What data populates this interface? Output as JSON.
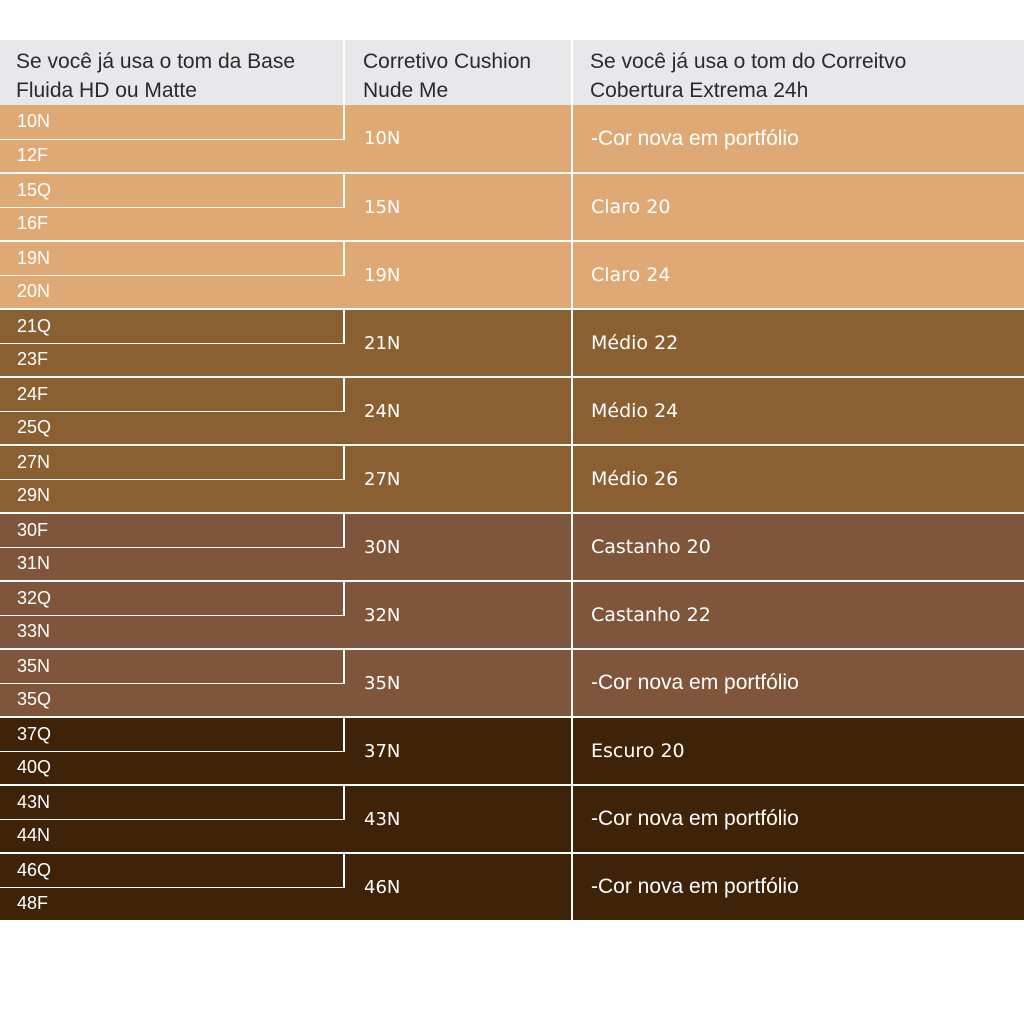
{
  "headers": {
    "base_line1": "Se você já usa o tom da Base",
    "base_line2": "Fluida HD ou Matte",
    "cushion_line1": "Corretivo Cushion",
    "cushion_line2": "Nude Me",
    "extrema_line1": "Se você já usa o tom do Correitvo",
    "extrema_line2": "Cobertura Extrema 24h"
  },
  "colors": {
    "light": "#dfa975",
    "medium": "#8a6033",
    "tan": "#7f553b",
    "dark": "#3f2309",
    "header_bg": "#e8e7e9"
  },
  "rows": [
    {
      "base": [
        "10N",
        "12F"
      ],
      "cushion": "10N",
      "extrema": "-Cor nova em portfólio",
      "tone": "light"
    },
    {
      "base": [
        "15Q",
        "16F"
      ],
      "cushion": "15N",
      "extrema": "Claro 20",
      "tone": "light"
    },
    {
      "base": [
        "19N",
        "20N"
      ],
      "cushion": "19N",
      "extrema": "Claro 24",
      "tone": "light"
    },
    {
      "base": [
        "21Q",
        "23F"
      ],
      "cushion": "21N",
      "extrema": "Médio 22",
      "tone": "medium"
    },
    {
      "base": [
        "24F",
        "25Q"
      ],
      "cushion": "24N",
      "extrema": "Médio 24",
      "tone": "medium"
    },
    {
      "base": [
        "27N",
        "29N"
      ],
      "cushion": "27N",
      "extrema": "Médio 26",
      "tone": "medium"
    },
    {
      "base": [
        "30F",
        "31N"
      ],
      "cushion": "30N",
      "extrema": "Castanho 20",
      "tone": "tan"
    },
    {
      "base": [
        "32Q",
        "33N"
      ],
      "cushion": "32N",
      "extrema": "Castanho 22",
      "tone": "tan"
    },
    {
      "base": [
        "35N",
        "35Q"
      ],
      "cushion": "35N",
      "extrema": "-Cor nova em portfólio",
      "tone": "tan"
    },
    {
      "base": [
        "37Q",
        "40Q"
      ],
      "cushion": "37N",
      "extrema": "Escuro 20",
      "tone": "dark"
    },
    {
      "base": [
        "43N",
        "44N"
      ],
      "cushion": "43N",
      "extrema": "-Cor nova em portfólio",
      "tone": "dark"
    },
    {
      "base": [
        "46Q",
        "48F"
      ],
      "cushion": "46N",
      "extrema": "-Cor nova em portfólio",
      "tone": "dark"
    }
  ]
}
